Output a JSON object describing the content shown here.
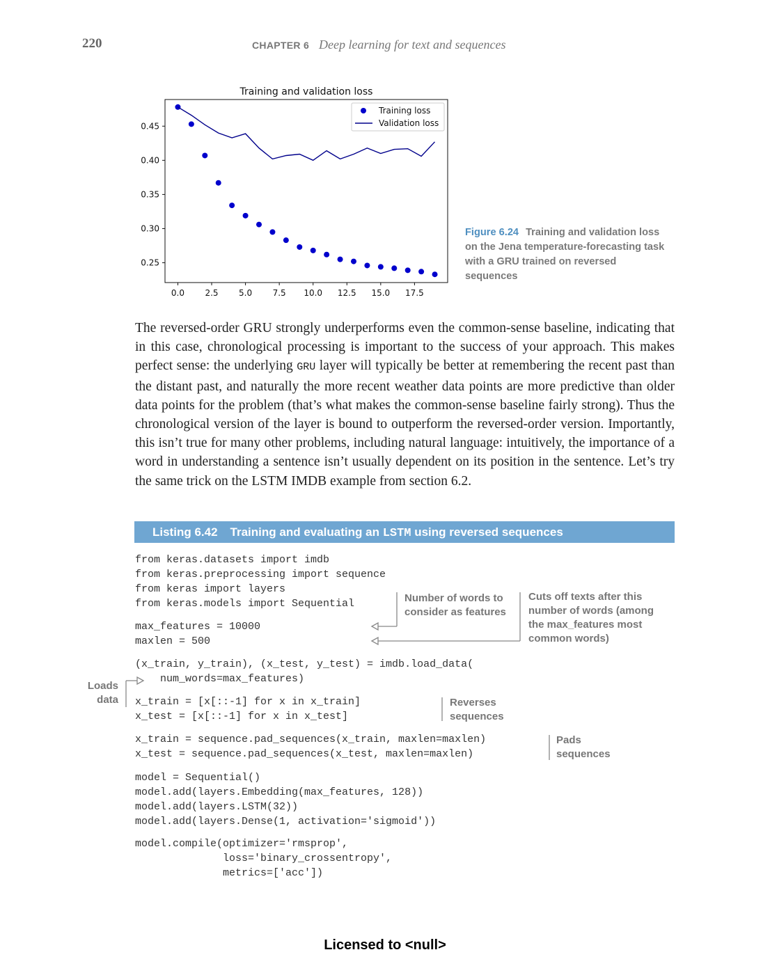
{
  "header": {
    "page_number": "220",
    "chapter_label": "CHAPTER 6",
    "chapter_title": "Deep learning for text and sequences"
  },
  "figure": {
    "number": "Figure 6.24",
    "caption": "Training and validation loss on the Jena temperature-forecasting task with a GRU trained on reversed sequences"
  },
  "chart_data": {
    "type": "line",
    "title": "Training and validation loss",
    "xlabel": "",
    "ylabel": "",
    "xlim": [
      -0.95,
      19.95
    ],
    "ylim": [
      0.221,
      0.489
    ],
    "x_ticks": [
      "0.0",
      "2.5",
      "5.0",
      "7.5",
      "10.0",
      "12.5",
      "15.0",
      "17.5"
    ],
    "x_tick_values": [
      0,
      2.5,
      5,
      7.5,
      10,
      12.5,
      15,
      17.5
    ],
    "y_ticks": [
      "0.25",
      "0.30",
      "0.35",
      "0.40",
      "0.45"
    ],
    "y_tick_values": [
      0.25,
      0.3,
      0.35,
      0.4,
      0.45
    ],
    "legend_position": "top-right",
    "x": [
      0,
      1,
      2,
      3,
      4,
      5,
      6,
      7,
      8,
      9,
      10,
      11,
      12,
      13,
      14,
      15,
      16,
      17,
      18,
      19
    ],
    "series": [
      {
        "name": "Training loss",
        "style": "dots",
        "color": "#0000cc",
        "values": [
          0.478,
          0.453,
          0.407,
          0.367,
          0.334,
          0.319,
          0.306,
          0.295,
          0.283,
          0.273,
          0.268,
          0.262,
          0.255,
          0.252,
          0.246,
          0.244,
          0.242,
          0.239,
          0.237,
          0.233
        ]
      },
      {
        "name": "Validation loss",
        "style": "line",
        "color": "#00008b",
        "values": [
          0.478,
          0.466,
          0.452,
          0.44,
          0.433,
          0.439,
          0.418,
          0.402,
          0.407,
          0.409,
          0.4,
          0.414,
          0.402,
          0.409,
          0.418,
          0.41,
          0.416,
          0.417,
          0.406,
          0.427
        ]
      }
    ]
  },
  "body": {
    "p1_a": "The reversed-order GRU strongly underperforms even the common-sense baseline, indicating that in this case, chronological processing is important to the success of your approach. This makes perfect sense: the underlying ",
    "p1_code": "GRU",
    "p1_b": " layer will typically be better at remembering the recent past than the distant past, and naturally the more recent weather data points are more predictive than older data points for the problem (that’s what makes the common-sense baseline fairly strong). Thus the chronological version of the layer is bound to outperform the reversed-order version. Importantly, this isn’t true for many other problems, including natural language: intuitively, the importance of a word in understanding a sentence isn’t usually dependent on its position in the sentence. Let’s try the same trick on the LSTM IMDB example from section 6.2."
  },
  "listing": {
    "number": "Listing 6.42",
    "title_a": "Training and evaluating an ",
    "title_code": "LSTM",
    "title_b": " using reversed sequences",
    "code_block_1": "from keras.datasets import imdb\nfrom keras.preprocessing import sequence\nfrom keras import layers\nfrom keras.models import Sequential",
    "code_block_2": "max_features = 10000\nmaxlen = 500",
    "code_block_3": "(x_train, y_train), (x_test, y_test) = imdb.load_data(\n    num_words=max_features)",
    "code_block_4": "x_train = [x[::-1] for x in x_train]\nx_test = [x[::-1] for x in x_test]",
    "code_block_5": "x_train = sequence.pad_sequences(x_train, maxlen=maxlen)\nx_test = sequence.pad_sequences(x_test, maxlen=maxlen)",
    "code_block_6": "model = Sequential()\nmodel.add(layers.Embedding(max_features, 128))\nmodel.add(layers.LSTM(32))\nmodel.add(layers.Dense(1, activation='sigmoid'))",
    "code_block_7": "model.compile(optimizer='rmsprop',\n              loss='binary_crossentropy',\n              metrics=['acc'])"
  },
  "annotations": {
    "num_words": "Number of words to consider as features",
    "cuts_off": "Cuts off texts after this number of words (among the max_features most common words)",
    "loads_data": "Loads data",
    "reverses": "Reverses sequences",
    "pads": "Pads sequences"
  },
  "footer": {
    "license": "Licensed to   <null>"
  }
}
